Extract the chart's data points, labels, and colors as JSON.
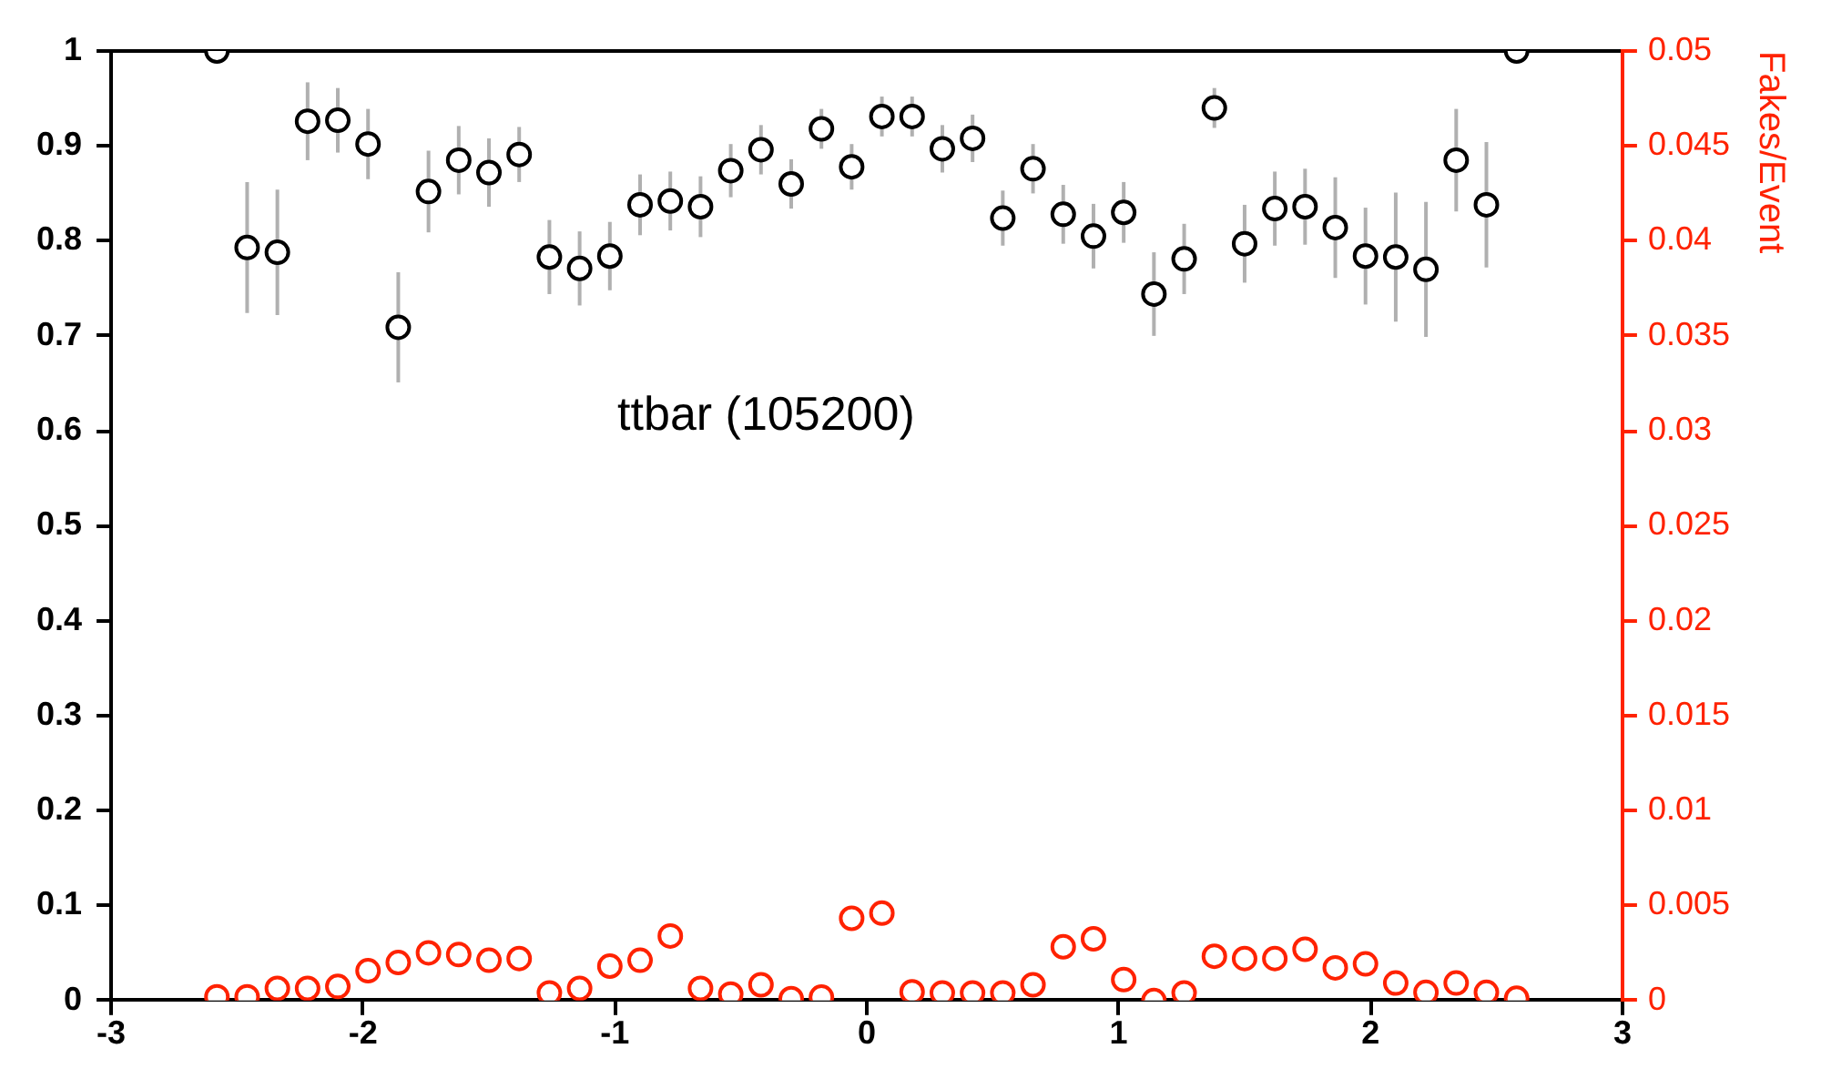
{
  "chart_data": {
    "type": "scatter",
    "y2label": "Fakes/Event",
    "annotations": [
      "ttbar (105200)"
    ],
    "x": [
      -2.58,
      -2.46,
      -2.34,
      -2.22,
      -2.1,
      -1.98,
      -1.86,
      -1.74,
      -1.62,
      -1.5,
      -1.38,
      -1.26,
      -1.14,
      -1.02,
      -0.9,
      -0.78,
      -0.66,
      -0.54,
      -0.42,
      -0.3,
      -0.18,
      -0.06,
      0.06,
      0.18,
      0.3,
      0.42,
      0.54,
      0.66,
      0.78,
      0.9,
      1.02,
      1.14,
      1.26,
      1.38,
      1.5,
      1.62,
      1.74,
      1.86,
      1.98,
      2.1,
      2.22,
      2.34,
      2.46,
      2.58
    ],
    "series": [
      {
        "color": "#000000",
        "values": [
          1.0,
          0.793,
          0.788,
          0.926,
          0.927,
          0.902,
          0.709,
          0.852,
          0.885,
          0.872,
          0.891,
          0.783,
          0.771,
          0.784,
          0.838,
          0.842,
          0.836,
          0.874,
          0.896,
          0.86,
          0.918,
          0.878,
          0.931,
          0.931,
          0.897,
          0.908,
          0.824,
          0.876,
          0.828,
          0.805,
          0.83,
          0.744,
          0.781,
          0.94,
          0.797,
          0.834,
          0.836,
          0.814,
          0.784,
          0.783,
          0.77,
          0.885,
          0.838,
          1.0
        ],
        "errors": [
          null,
          0.069,
          0.066,
          0.041,
          0.034,
          0.037,
          0.058,
          0.043,
          0.036,
          0.036,
          0.029,
          0.039,
          0.039,
          0.036,
          0.032,
          0.031,
          0.032,
          0.028,
          0.026,
          0.026,
          0.021,
          0.024,
          0.021,
          0.021,
          0.025,
          0.025,
          0.029,
          0.026,
          0.031,
          0.034,
          0.032,
          0.044,
          0.037,
          0.021,
          0.041,
          0.039,
          0.04,
          0.053,
          0.051,
          0.068,
          0.071,
          0.054,
          0.066,
          null
        ]
      },
      {
        "color": "#ff2200",
        "axis": "y2",
        "values": [
          0.0002,
          0.0002,
          0.00064,
          0.00064,
          0.00074,
          0.00157,
          0.002,
          0.00251,
          0.00242,
          0.00212,
          0.00221,
          0.0004,
          0.00064,
          0.00181,
          0.00212,
          0.0034,
          0.00064,
          0.00034,
          0.00083,
          0.0001,
          0.00018,
          0.00433,
          0.0046,
          0.00046,
          0.0004,
          0.0004,
          0.0004,
          0.00083,
          0.00283,
          0.00325,
          0.0011,
          0.0,
          0.0004,
          0.00233,
          0.00221,
          0.00221,
          0.0027,
          0.00172,
          0.00193,
          0.00092,
          0.00043,
          0.00092,
          0.00043,
          0.00012
        ]
      }
    ],
    "xlim": [
      -3,
      3
    ],
    "xticks": [
      -3,
      -2,
      -1,
      0,
      1,
      2,
      3
    ],
    "ylim": [
      0,
      1
    ],
    "yticks": [
      0,
      0.1,
      0.2,
      0.3,
      0.4,
      0.5,
      0.6,
      0.7,
      0.8,
      0.9,
      1
    ],
    "y2lim": [
      0,
      0.05
    ],
    "y2ticks": [
      0,
      0.005,
      0.01,
      0.015,
      0.02,
      0.025,
      0.03,
      0.035,
      0.04,
      0.045,
      0.05
    ],
    "marker": "circle",
    "grid": false,
    "legend": false
  }
}
